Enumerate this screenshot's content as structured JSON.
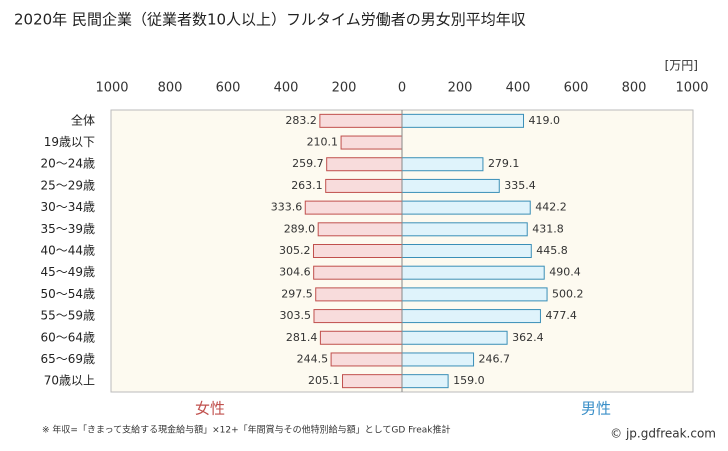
{
  "chart_data": {
    "type": "butterfly",
    "title": "2020年 民間企業（従業者数10人以上）フルタイム労働者の男女別平均年収",
    "unit_label": "[万円]",
    "categories": [
      "全体",
      "19歳以下",
      "20〜24歳",
      "25〜29歳",
      "30〜34歳",
      "35〜39歳",
      "40〜44歳",
      "45〜49歳",
      "50〜54歳",
      "55〜59歳",
      "60〜64歳",
      "65〜69歳",
      "70歳以上"
    ],
    "series": [
      {
        "name": "女性",
        "side": "left",
        "color": "#f8dcdc",
        "stroke": "#c0504d",
        "legend_color": "#c0504d",
        "values": [
          283.2,
          210.1,
          259.7,
          263.1,
          333.6,
          289.0,
          305.2,
          304.6,
          297.5,
          303.5,
          281.4,
          244.5,
          205.1
        ],
        "value_labels": [
          "283.2",
          "210.1",
          "259.7",
          "263.1",
          "333.6",
          "289.0",
          "305.2",
          "304.6",
          "297.5",
          "303.5",
          "281.4",
          "244.5",
          "205.1"
        ]
      },
      {
        "name": "男性",
        "side": "right",
        "color": "#dff3fb",
        "stroke": "#3a8fb7",
        "legend_color": "#3a8fc8",
        "values": [
          419.0,
          null,
          279.1,
          335.4,
          442.2,
          431.8,
          445.8,
          490.4,
          500.2,
          477.4,
          362.4,
          246.7,
          159.0
        ],
        "value_labels": [
          "419.0",
          null,
          "279.1",
          "335.4",
          "442.2",
          "431.8",
          "445.8",
          "490.4",
          "500.2",
          "477.4",
          "362.4",
          "246.7",
          "159.0"
        ]
      }
    ],
    "xlim": [
      0,
      1000
    ],
    "left_xticks": [
      1000,
      800,
      600,
      400,
      200
    ],
    "right_xticks": [
      0,
      200,
      400,
      600,
      800,
      1000
    ],
    "footnote": "※ 年収=「きまって支給する現金給与額」×12+「年間賞与その他特別給与額」としてGD Freak推計",
    "credit": "© jp.gdfreak.com"
  }
}
